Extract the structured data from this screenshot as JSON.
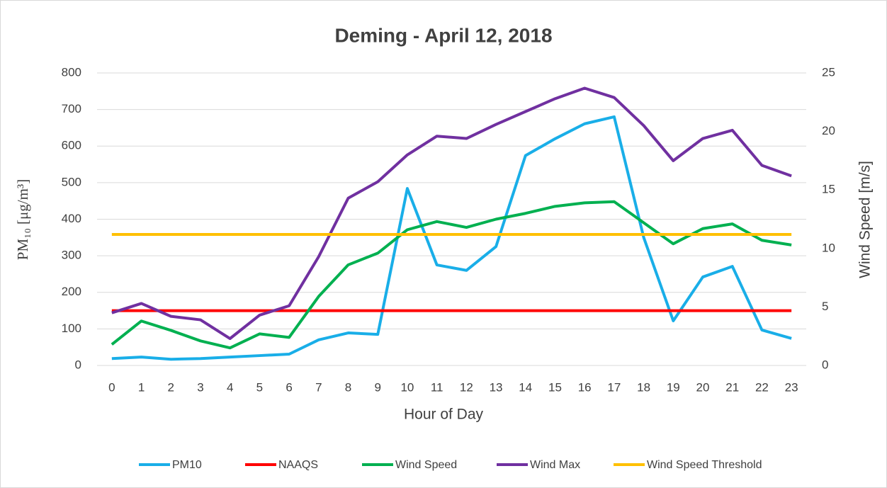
{
  "chart_data": {
    "type": "line",
    "title": "Deming - April 12, 2018",
    "x_label": "Hour of Day",
    "y_label": "PM₁₀ [μg/m³]",
    "y2_label": "Wind Speed [m/s]",
    "categories": [
      "0",
      "1",
      "2",
      "3",
      "4",
      "5",
      "6",
      "7",
      "8",
      "9",
      "10",
      "11",
      "12",
      "13",
      "14",
      "15",
      "16",
      "17",
      "18",
      "19",
      "20",
      "21",
      "22",
      "23"
    ],
    "ylim": [
      0,
      800
    ],
    "yticks": [
      0,
      100,
      200,
      300,
      400,
      500,
      600,
      700,
      800
    ],
    "y2lim": [
      0,
      25
    ],
    "y2ticks": [
      0,
      5,
      10,
      15,
      20,
      25
    ],
    "grid": true,
    "legend": "bottom",
    "series": [
      {
        "name": "PM10",
        "color": "#19aee8",
        "values": [
          19,
          23,
          17,
          19,
          23,
          27,
          31,
          70,
          89,
          85,
          484,
          275,
          260,
          325,
          574,
          620,
          661,
          680,
          350,
          122,
          242,
          271,
          97,
          74
        ]
      },
      {
        "name": "NAAQS",
        "color": "#ff0000",
        "values": [
          150,
          150,
          150,
          150,
          150,
          150,
          150,
          150,
          150,
          150,
          150,
          150,
          150,
          150,
          150,
          150,
          150,
          150,
          150,
          150,
          150,
          150,
          150,
          150
        ]
      },
      {
        "name": "Wind Speed",
        "color": "#00b050",
        "axis": "y2",
        "values": [
          1.8,
          3.8,
          3.0,
          2.1,
          1.5,
          2.7,
          2.4,
          5.9,
          8.6,
          9.6,
          11.6,
          12.3,
          11.8,
          12.5,
          13.0,
          13.6,
          13.9,
          14.0,
          12.2,
          10.4,
          11.7,
          12.1,
          10.7,
          10.3
        ]
      },
      {
        "name": "Wind Max",
        "color": "#7030a0",
        "axis": "y2",
        "values": [
          4.5,
          5.3,
          4.2,
          3.9,
          2.3,
          4.3,
          5.1,
          9.3,
          14.3,
          15.7,
          18.0,
          19.6,
          19.4,
          20.6,
          21.7,
          22.8,
          23.7,
          22.9,
          20.5,
          17.5,
          19.4,
          20.1,
          17.1,
          16.2
        ]
      },
      {
        "name": "Wind Speed Threshold",
        "color": "#ffc000",
        "axis": "y2",
        "values": [
          11.2,
          11.2,
          11.2,
          11.2,
          11.2,
          11.2,
          11.2,
          11.2,
          11.2,
          11.2,
          11.2,
          11.2,
          11.2,
          11.2,
          11.2,
          11.2,
          11.2,
          11.2,
          11.2,
          11.2,
          11.2,
          11.2,
          11.2,
          11.2
        ]
      }
    ]
  }
}
